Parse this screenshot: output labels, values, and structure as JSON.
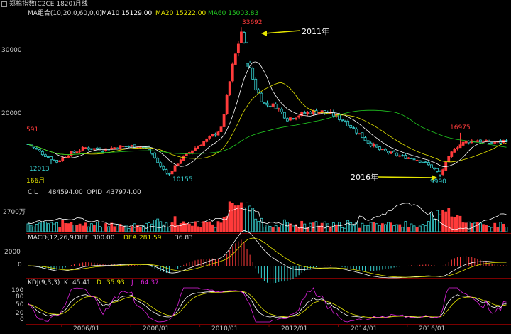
{
  "window": {
    "title": "郑棉指数(C2CE 1820)月线"
  },
  "main_pane": {
    "legend": [
      {
        "label": "MA组合(10,20,0,60,0,0)",
        "color": "#dddddd"
      },
      {
        "label": "MA10 15129.00",
        "color": "#ffffff"
      },
      {
        "label": "MA20 15222.00",
        "color": "#e6e600"
      },
      {
        "label": "MA60 15003.83",
        "color": "#22cc22"
      }
    ],
    "y_ticks": [
      "30000",
      "20000"
    ],
    "cut_label": "591",
    "left_bottom_label": "166月",
    "price_labels": {
      "high_2011": "33692",
      "low_2005": "12013",
      "low_2008": "10155",
      "low_2016": "9990",
      "high_2017": "16975"
    },
    "annotations": {
      "a2011": "2011年",
      "a2016": "2016年"
    }
  },
  "volume_pane": {
    "label": "CJL",
    "cjl": "484594.00",
    "opid_label": "OPID",
    "opid": "437974.00",
    "y_tick": "2700",
    "y_unit": "万"
  },
  "macd_pane": {
    "label": "MACD(12,26,9)",
    "diff_label": "DIFF",
    "diff": "300.00",
    "dea_label": "DEA",
    "dea": "281.59",
    "macd": "36.83",
    "y_ticks": [
      "2000",
      "0"
    ]
  },
  "kdj_pane": {
    "label": "KDJ(9,3,3)",
    "k_label": "K",
    "k": "45.41",
    "d_label": "D",
    "d": "35.93",
    "j_label": "J",
    "j": "64.37",
    "y_ticks": [
      "100",
      "80",
      "50",
      "20",
      "0"
    ]
  },
  "x_axis": {
    "labels": [
      "2006/01",
      "2008/01",
      "2010/01",
      "2012/01",
      "2014/01",
      "2016/01"
    ]
  },
  "chart_data": {
    "type": "candlestick",
    "title": "郑棉指数(C2CE 1820)月线",
    "price_ylim": [
      10000,
      35000
    ],
    "anchor_points": [
      {
        "date": "2005",
        "price": 12013
      },
      {
        "date": "2008",
        "price": 10155
      },
      {
        "date": "2011",
        "price": 33692
      },
      {
        "date": "2016",
        "price": 9990
      },
      {
        "date": "2017",
        "price": 16975
      }
    ],
    "moving_averages": {
      "MA10": 15129.0,
      "MA20": 15222.0,
      "MA60": 15003.83
    },
    "volume": {
      "CJL": 484594.0,
      "OPID": 437974.0
    },
    "macd": {
      "DIFF": 300.0,
      "DEA": 281.59,
      "MACD": 36.83
    },
    "kdj": {
      "K": 45.41,
      "D": 35.93,
      "J": 64.37
    },
    "colors": {
      "up": "#ff3b3b",
      "down": "#36d1d1",
      "ma10": "#ffffff",
      "ma20": "#e6e600",
      "ma60": "#22cc22",
      "kdj_j": "#dd22dd",
      "grid": "#7a0000"
    }
  }
}
